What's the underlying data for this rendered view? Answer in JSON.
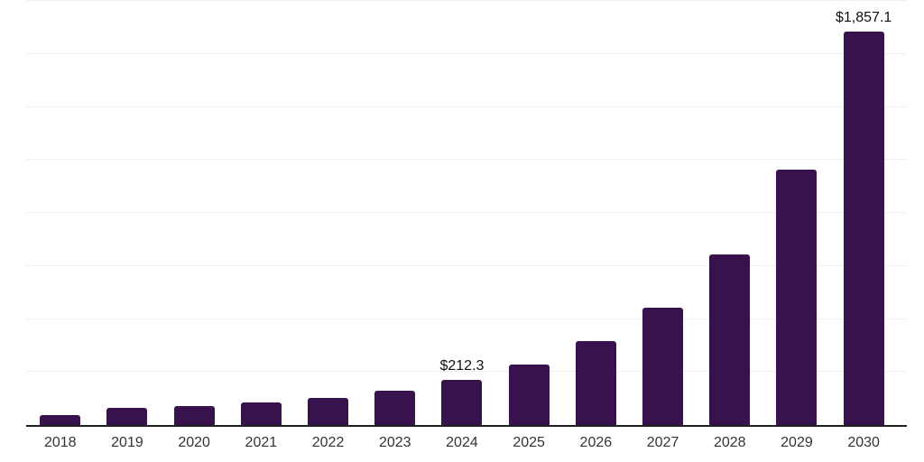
{
  "chart_data": {
    "type": "bar",
    "title": "",
    "xlabel": "",
    "ylabel": "",
    "categories": [
      "2018",
      "2019",
      "2020",
      "2021",
      "2022",
      "2023",
      "2024",
      "2025",
      "2026",
      "2027",
      "2028",
      "2029",
      "2030"
    ],
    "values": [
      47.0,
      81.7,
      87.9,
      108.5,
      126.0,
      160.9,
      212.3,
      286.0,
      396.0,
      552.0,
      803.0,
      1205.0,
      1857.1
    ],
    "point_labels": [
      "",
      "",
      "",
      "",
      "",
      "",
      "$212.3",
      "",
      "",
      "",
      "",
      "",
      "$1,857.1"
    ],
    "ylim": [
      0,
      2000
    ],
    "gridline_step": 250,
    "grid": true,
    "legend": false,
    "y_axis_tick_labels_visible": false
  },
  "style": {
    "bar_color": "#38124D",
    "axis_line_color": "#1f1f1f",
    "gridline_color": "#f0f0f0",
    "data_label_color": "#111111",
    "tick_label_color": "#333333",
    "background_color": "#ffffff"
  }
}
